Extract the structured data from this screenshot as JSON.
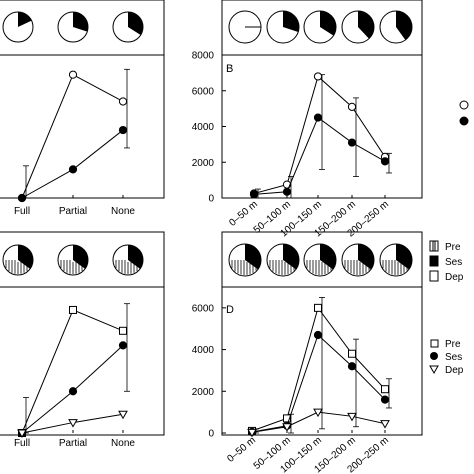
{
  "figure": {
    "panel_labels": {
      "B": "B",
      "D": "D"
    },
    "legend_top": {
      "items": [
        "",
        ""
      ]
    },
    "legend_bottom": {
      "items": [
        "Pre",
        "Ses",
        "Dep"
      ]
    },
    "legend_bottom_pred": {
      "items": [
        "Pre",
        "Ses",
        "Dep"
      ]
    }
  },
  "chart_data": [
    {
      "id": "A",
      "type": "line",
      "categories": [
        "Full",
        "Partial",
        "None"
      ],
      "ylim": [
        0,
        8000
      ],
      "yticks": [],
      "series": [
        {
          "marker": "open-circle",
          "values": [
            0,
            6900,
            5400
          ]
        },
        {
          "marker": "filled-circle",
          "values": [
            0,
            1600,
            3800
          ]
        }
      ],
      "pies_black_fraction": [
        0.18,
        0.3,
        0.34
      ]
    },
    {
      "id": "B",
      "type": "line",
      "categories": [
        "0–50 m",
        "50–100 m",
        "100–150 m",
        "150–200 m",
        "200–250 m"
      ],
      "ylim": [
        0,
        8000
      ],
      "yticks": [
        "0",
        "2000",
        "4000",
        "6000",
        "8000"
      ],
      "series": [
        {
          "marker": "open-circle",
          "values": [
            250,
            750,
            6800,
            5100,
            2300
          ]
        },
        {
          "marker": "filled-circle",
          "values": [
            200,
            350,
            4500,
            3100,
            2050
          ]
        }
      ],
      "pies_black_fraction": [
        0.0,
        0.3,
        0.34,
        0.38,
        0.4
      ]
    },
    {
      "id": "C",
      "type": "line",
      "categories": [
        "Full",
        "Partial",
        "None"
      ],
      "ylim": [
        0,
        7000
      ],
      "yticks": [],
      "series": [
        {
          "marker": "open-square",
          "values": [
            0,
            5900,
            4900
          ]
        },
        {
          "marker": "filled-circle",
          "values": [
            0,
            2000,
            4200
          ]
        },
        {
          "marker": "open-triangle",
          "values": [
            0,
            500,
            900
          ]
        }
      ]
    },
    {
      "id": "D",
      "type": "line",
      "categories": [
        "0–50 m",
        "50–100 m",
        "100–150 m",
        "150–200 m",
        "200–250 m"
      ],
      "ylim": [
        0,
        7000
      ],
      "yticks": [
        "0",
        "2000",
        "4000",
        "6000"
      ],
      "series": [
        {
          "marker": "open-square",
          "values": [
            100,
            700,
            6000,
            3800,
            2100
          ]
        },
        {
          "marker": "filled-circle",
          "values": [
            50,
            350,
            4700,
            3200,
            1600
          ]
        },
        {
          "marker": "open-triangle",
          "values": [
            30,
            300,
            1000,
            800,
            450
          ]
        }
      ]
    }
  ]
}
